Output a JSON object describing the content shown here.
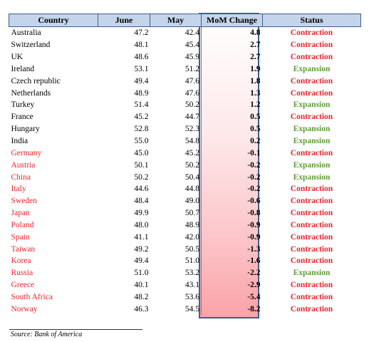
{
  "table": {
    "headers": [
      "Country",
      "June",
      "May",
      "MoM Change",
      "Status"
    ],
    "rows": [
      {
        "country": "Australia",
        "june": "47.2",
        "may": "42.4",
        "mom": "4.8",
        "status": "Contraction",
        "country_color": "black",
        "status_color": "red"
      },
      {
        "country": "Switzerland",
        "june": "48.1",
        "may": "45.4",
        "mom": "2.7",
        "status": "Contraction",
        "country_color": "black",
        "status_color": "red"
      },
      {
        "country": "UK",
        "june": "48.6",
        "may": "45.9",
        "mom": "2.7",
        "status": "Contraction",
        "country_color": "black",
        "status_color": "red"
      },
      {
        "country": "Ireland",
        "june": "53.1",
        "may": "51.2",
        "mom": "1.9",
        "status": "Expansion",
        "country_color": "black",
        "status_color": "green"
      },
      {
        "country": "Czech republic",
        "june": "49.4",
        "may": "47.6",
        "mom": "1.8",
        "status": "Contraction",
        "country_color": "black",
        "status_color": "red"
      },
      {
        "country": "Netherlands",
        "june": "48.9",
        "may": "47.6",
        "mom": "1.3",
        "status": "Contraction",
        "country_color": "black",
        "status_color": "red"
      },
      {
        "country": "Turkey",
        "june": "51.4",
        "may": "50.2",
        "mom": "1.2",
        "status": "Expansion",
        "country_color": "black",
        "status_color": "green"
      },
      {
        "country": "France",
        "june": "45.2",
        "may": "44.7",
        "mom": "0.5",
        "status": "Contraction",
        "country_color": "black",
        "status_color": "red"
      },
      {
        "country": "Hungary",
        "june": "52.8",
        "may": "52.3",
        "mom": "0.5",
        "status": "Expansion",
        "country_color": "black",
        "status_color": "green"
      },
      {
        "country": "India",
        "june": "55.0",
        "may": "54.8",
        "mom": "0.2",
        "status": "Expansion",
        "country_color": "black",
        "status_color": "green"
      },
      {
        "country": "Germany",
        "june": "45.0",
        "may": "45.2",
        "mom": "-0.1",
        "status": "Contraction",
        "country_color": "red",
        "status_color": "red"
      },
      {
        "country": "Austria",
        "june": "50.1",
        "may": "50.2",
        "mom": "-0.2",
        "status": "Expansion",
        "country_color": "red",
        "status_color": "green"
      },
      {
        "country": "China",
        "june": "50.2",
        "may": "50.4",
        "mom": "-0.2",
        "status": "Expansion",
        "country_color": "red",
        "status_color": "green"
      },
      {
        "country": "Italy",
        "june": "44.6",
        "may": "44.8",
        "mom": "-0.2",
        "status": "Contraction",
        "country_color": "red",
        "status_color": "red"
      },
      {
        "country": "Sweden",
        "june": "48.4",
        "may": "49.0",
        "mom": "-0.6",
        "status": "Contraction",
        "country_color": "red",
        "status_color": "red"
      },
      {
        "country": "Japan",
        "june": "49.9",
        "may": "50.7",
        "mom": "-0.8",
        "status": "Contraction",
        "country_color": "red",
        "status_color": "red"
      },
      {
        "country": "Poland",
        "june": "48.0",
        "may": "48.9",
        "mom": "-0.9",
        "status": "Contraction",
        "country_color": "red",
        "status_color": "red"
      },
      {
        "country": "Spain",
        "june": "41.1",
        "may": "42.0",
        "mom": "-0.9",
        "status": "Contraction",
        "country_color": "red",
        "status_color": "red"
      },
      {
        "country": "Taiwan",
        "june": "49.2",
        "may": "50.5",
        "mom": "-1.3",
        "status": "Contraction",
        "country_color": "red",
        "status_color": "red"
      },
      {
        "country": "Korea",
        "june": "49.4",
        "may": "51.0",
        "mom": "-1.6",
        "status": "Contraction",
        "country_color": "red",
        "status_color": "red"
      },
      {
        "country": "Russia",
        "june": "51.0",
        "may": "53.2",
        "mom": "-2.2",
        "status": "Expansion",
        "country_color": "red",
        "status_color": "green"
      },
      {
        "country": "Greece",
        "june": "40.1",
        "may": "43.1",
        "mom": "-2.9",
        "status": "Contraction",
        "country_color": "red",
        "status_color": "red"
      },
      {
        "country": "South Africa",
        "june": "48.2",
        "may": "53.6",
        "mom": "-5.4",
        "status": "Contraction",
        "country_color": "red",
        "status_color": "red"
      },
      {
        "country": "Norway",
        "june": "46.3",
        "may": "54.5",
        "mom": "-8.2",
        "status": "Contraction",
        "country_color": "red",
        "status_color": "red"
      }
    ]
  },
  "source": "Source: Bank of America",
  "colors": {
    "header_bg": "#c4d4ea",
    "header_border": "#3f5f8a",
    "contraction": "#e8262a",
    "expansion": "#5f9b35",
    "negative_country": "#e8262a"
  }
}
